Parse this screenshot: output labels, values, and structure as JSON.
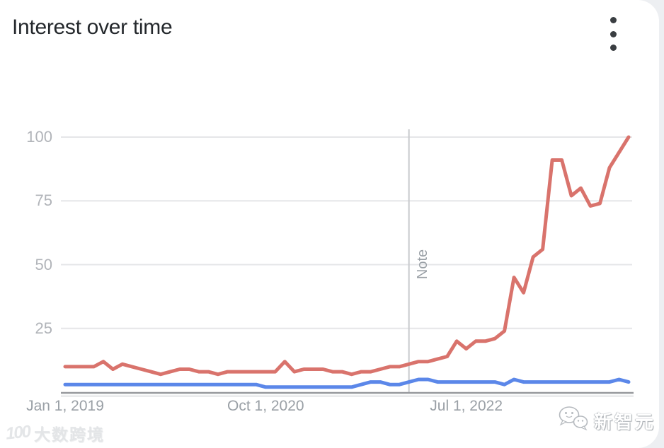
{
  "header": {
    "title": "Interest over time",
    "menu_icon": "kebab-menu"
  },
  "watermarks": {
    "bottom_left_logo_glyph": "100",
    "bottom_left_text": "大数跨境",
    "bottom_right_icon": "wechat-bubbles",
    "bottom_right_text": "新智元"
  },
  "colors": {
    "series_red": "#d9736c",
    "series_blue": "#5b87e9",
    "gridline": "#e5e6e8",
    "axis_line": "#97999d",
    "axis_echo": "#d8dadc",
    "note_line": "#c8cacd",
    "tick_text": "#9aa0a6"
  },
  "chart_data": {
    "type": "line",
    "title": "Interest over time",
    "xlabel": "",
    "ylabel": "",
    "ylim": [
      0,
      100
    ],
    "grid": true,
    "legend": "none",
    "x_unit": "month",
    "x_start": "Jan 2019",
    "x_end": "Dec 2023",
    "y_ticks": [
      25,
      50,
      75,
      100
    ],
    "x_ticks": [
      {
        "label": "Jan 1, 2019",
        "month_index": 0
      },
      {
        "label": "Oct 1, 2020",
        "month_index": 21
      },
      {
        "label": "Jul 1, 2022",
        "month_index": 42
      }
    ],
    "note_marker": {
      "label": "Note",
      "month_index": 36
    },
    "series": [
      {
        "name": "red-series",
        "color": "#d9736c",
        "values": [
          10,
          10,
          10,
          10,
          12,
          9,
          11,
          10,
          9,
          8,
          7,
          8,
          9,
          9,
          8,
          8,
          7,
          8,
          8,
          8,
          8,
          8,
          8,
          12,
          8,
          9,
          9,
          9,
          8,
          8,
          7,
          8,
          8,
          9,
          10,
          10,
          11,
          12,
          12,
          13,
          14,
          20,
          17,
          20,
          20,
          21,
          24,
          45,
          39,
          53,
          56,
          91,
          91,
          77,
          80,
          73,
          74,
          88,
          94,
          100
        ]
      },
      {
        "name": "blue-series",
        "color": "#5b87e9",
        "values": [
          3,
          3,
          3,
          3,
          3,
          3,
          3,
          3,
          3,
          3,
          3,
          3,
          3,
          3,
          3,
          3,
          3,
          3,
          3,
          3,
          3,
          2,
          2,
          2,
          2,
          2,
          2,
          2,
          2,
          2,
          2,
          3,
          4,
          4,
          3,
          3,
          4,
          5,
          5,
          4,
          4,
          4,
          4,
          4,
          4,
          4,
          3,
          5,
          4,
          4,
          4,
          4,
          4,
          4,
          4,
          4,
          4,
          4,
          5,
          4
        ]
      }
    ]
  }
}
